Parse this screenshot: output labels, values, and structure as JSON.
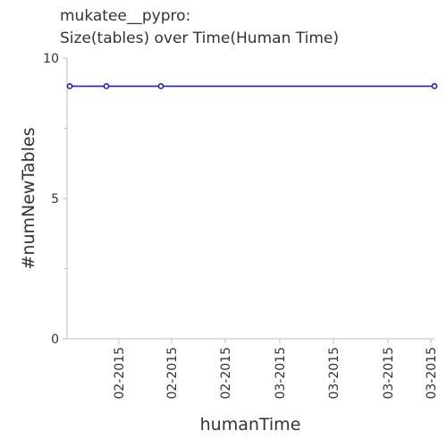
{
  "chart_data": {
    "type": "line",
    "title_lines": [
      "mukatee__pypro:",
      "Size(tables) over Time(Human Time)"
    ],
    "xlabel": "humanTime",
    "ylabel": "#numNewTables",
    "ylim": [
      0,
      10
    ],
    "yticks": [
      0,
      5,
      10
    ],
    "xticks": [
      "02-2015",
      "02-2015",
      "02-2015",
      "03-2015",
      "03-2015",
      "03-2015",
      "03-2015"
    ],
    "x": [
      "01-2015",
      "02-2015",
      "02-2015",
      "03-2015"
    ],
    "series": [
      {
        "values": [
          9,
          9,
          9,
          9
        ],
        "color": "#1f1fcf"
      }
    ],
    "grid": false,
    "colors": {
      "line": "#1f1fcf",
      "axis": "#bfbfbf",
      "text": "#333333"
    }
  }
}
